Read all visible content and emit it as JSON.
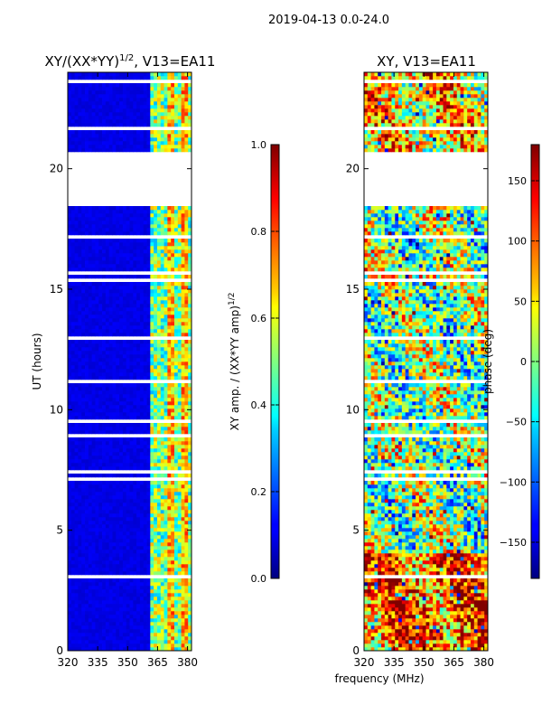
{
  "figure": {
    "suptitle": "2019-04-13 0.0-24.0"
  },
  "chart_data": [
    {
      "type": "heatmap",
      "title": "XY/(XX*YY)",
      "title_sup": "1/2",
      "title_suffix": ", V13=EA11",
      "xlabel": "",
      "ylabel": "UT (hours)",
      "xlim": [
        320,
        382
      ],
      "ylim": [
        0,
        24
      ],
      "xticks": [
        320,
        335,
        350,
        365,
        380
      ],
      "yticks": [
        0,
        5,
        10,
        15,
        20
      ],
      "gap_hours": [
        [
          18.6,
          20.7
        ]
      ],
      "colorbar": {
        "label": "XY amp. / (XX*YY amp)",
        "label_sup": "1/2",
        "range": [
          0.0,
          1.0
        ],
        "ticks": [
          "0.0",
          "0.2",
          "0.4",
          "0.6",
          "0.8",
          "1.0"
        ]
      }
    },
    {
      "type": "heatmap",
      "title": "XY, V13=EA11",
      "xlabel": "frequency (MHz)",
      "ylabel": "",
      "xlim": [
        320,
        382
      ],
      "ylim": [
        0,
        24
      ],
      "xticks": [
        320,
        335,
        350,
        365,
        380
      ],
      "yticks": [
        0,
        5,
        10,
        15,
        20
      ],
      "gap_hours": [
        [
          18.6,
          20.7
        ]
      ],
      "colorbar": {
        "label": "phase (deg)",
        "range": [
          -180,
          180
        ],
        "ticks": [
          "−150",
          "−100",
          "−50",
          "0",
          "50",
          "100",
          "150"
        ]
      }
    }
  ]
}
